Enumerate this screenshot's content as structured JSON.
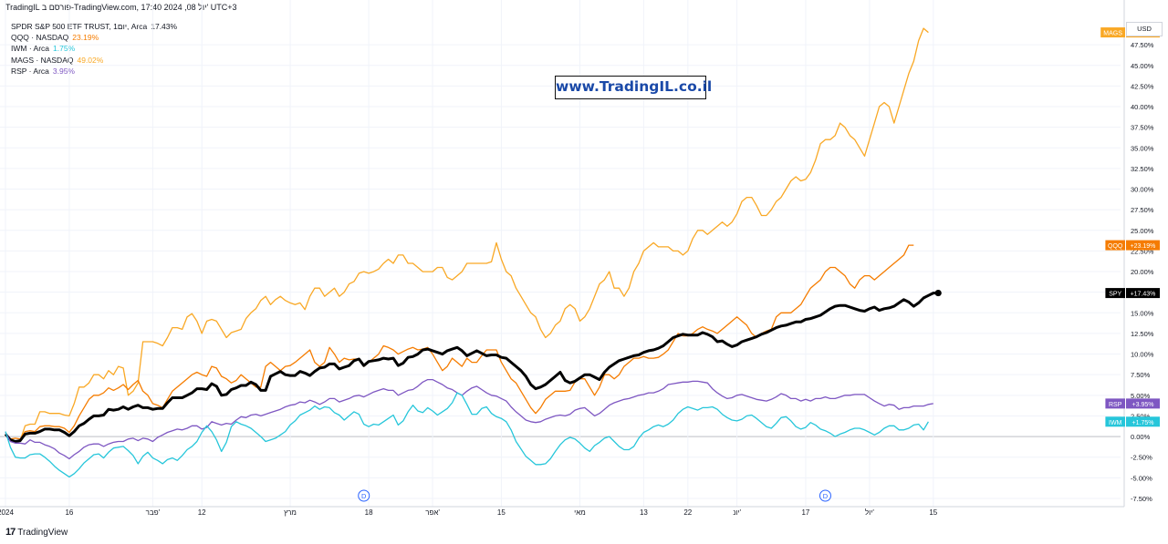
{
  "header": {
    "text": "TradingIL פורסם ב-TradingView.com, 17:40 2024 ,08 יול' UTC+3"
  },
  "watermark": "www.TradingIL.co.il",
  "currency_label": "USD",
  "footer": {
    "logo_icon": "tradingview-logo-icon",
    "brand": "TradingView"
  },
  "event_markers": [
    {
      "label": "D",
      "x_index": 73
    },
    {
      "label": "D",
      "x_index": 167
    }
  ],
  "legend": [
    {
      "label": "SPDR S&P 500 ETF TRUST, 1יום, Arca",
      "value": "17.43%",
      "color": "#131722"
    },
    {
      "label": "QQQ · NASDAQ",
      "value": "23.19%",
      "color": "#f57c00"
    },
    {
      "label": "IWM · Arca",
      "value": "1.75%",
      "color": "#26c6da"
    },
    {
      "label": "MAGS · NASDAQ",
      "value": "49.02%",
      "color": "#f9a825"
    },
    {
      "label": "RSP · Arca",
      "value": "3.95%",
      "color": "#7e57c2"
    }
  ],
  "chart_data": {
    "type": "line",
    "y_unit": "%",
    "ylim": [
      -8.5,
      50.5
    ],
    "y_ticks": [
      "-7.50%",
      "-5.00%",
      "-2.50%",
      "0.00%",
      "2.50%",
      "5.00%",
      "7.50%",
      "10.00%",
      "12.50%",
      "15.00%",
      "17.50%",
      "20.00%",
      "22.50%",
      "25.00%",
      "27.50%",
      "30.00%",
      "32.50%",
      "35.00%",
      "37.50%",
      "40.00%",
      "42.50%",
      "45.00%",
      "47.50%"
    ],
    "y_tick_values": [
      -7.5,
      -5,
      -2.5,
      0,
      2.5,
      5,
      7.5,
      10,
      12.5,
      15,
      17.5,
      20,
      22.5,
      25,
      27.5,
      30,
      32.5,
      35,
      37.5,
      40,
      42.5,
      45,
      47.5
    ],
    "x_ticks": [
      {
        "label": "2024",
        "index": 0
      },
      {
        "label": "16",
        "index": 13
      },
      {
        "label": "פבר'",
        "index": 30
      },
      {
        "label": "12",
        "index": 40
      },
      {
        "label": "מרץ",
        "index": 58
      },
      {
        "label": "18",
        "index": 74
      },
      {
        "label": "אפר'",
        "index": 87
      },
      {
        "label": "15",
        "index": 101
      },
      {
        "label": "מאי",
        "index": 117
      },
      {
        "label": "13",
        "index": 130
      },
      {
        "label": "22",
        "index": 139
      },
      {
        "label": "יונ'",
        "index": 149
      },
      {
        "label": "17",
        "index": 163
      },
      {
        "label": "יול'",
        "index": 176
      },
      {
        "label": "15",
        "index": 189
      }
    ],
    "series": [
      {
        "name": "MAGS",
        "badge": "+49.02%",
        "color": "#f9a825",
        "width": 1.3,
        "end_dot": false,
        "values": [
          0.5,
          -0.5,
          -0.5,
          -0.5,
          1.3,
          1.5,
          1.5,
          3.0,
          3.0,
          2.8,
          2.8,
          2.8,
          2.6,
          2.5,
          4.0,
          6.0,
          6.0,
          6.5,
          7.5,
          7.5,
          7.0,
          8.0,
          7.5,
          8.5,
          8.3,
          5.0,
          5.5,
          6.5,
          11.5,
          11.5,
          11.5,
          11.3,
          11.0,
          12.0,
          13.2,
          13.2,
          13.0,
          14.5,
          14.9,
          14.0,
          12.5,
          14.0,
          14.2,
          14.0,
          13.0,
          12.0,
          12.6,
          12.8,
          13.0,
          14.3,
          15.0,
          15.5,
          16.5,
          17.0,
          16.0,
          16.6,
          17.0,
          16.5,
          16.2,
          16.0,
          16.2,
          15.4,
          17.0,
          18.0,
          18.0,
          17.0,
          17.5,
          18.0,
          17.0,
          17.5,
          18.5,
          18.8,
          19.8,
          20.0,
          19.8,
          20.0,
          20.3,
          21.0,
          21.5,
          21.0,
          22.0,
          22.0,
          21.0,
          21.0,
          20.5,
          20.0,
          20.0,
          20.0,
          20.5,
          20.5,
          19.3,
          19.0,
          19.5,
          20.0,
          21.0,
          21.0,
          21.0,
          21.0,
          21.0,
          21.2,
          23.5,
          21.5,
          20.0,
          19.5,
          18.0,
          17.0,
          16.0,
          15.0,
          14.5,
          13.0,
          12.0,
          12.5,
          13.5,
          14.0,
          15.5,
          16.0,
          15.5,
          14.0,
          14.5,
          15.5,
          17.0,
          18.5,
          19.0,
          20.0,
          18.0,
          18.0,
          17.0,
          18.0,
          20.0,
          21.0,
          22.5,
          23.0,
          23.5,
          23.0,
          23.0,
          23.0,
          22.5,
          22.5,
          22.0,
          22.5,
          24.0,
          25.0,
          25.0,
          24.5,
          25.0,
          25.5,
          26.0,
          25.5,
          26.0,
          27.0,
          28.5,
          29.0,
          29.0,
          28.0,
          26.8,
          26.8,
          27.5,
          28.5,
          29.0,
          30.0,
          31.0,
          31.5,
          31.0,
          31.2,
          32.0,
          33.5,
          35.5,
          36.0,
          36.0,
          36.5,
          38.0,
          37.5,
          36.5,
          36.0,
          35.0,
          34.0,
          36.0,
          38.0,
          40.0,
          40.5,
          40.0,
          38.0,
          40.0,
          42.0,
          44.0,
          45.5,
          48.0,
          49.5,
          49.0
        ]
      },
      {
        "name": "QQQ",
        "badge": "+23.19%",
        "color": "#f57c00",
        "width": 1.3,
        "end_dot": false,
        "values": [
          0.2,
          -0.3,
          -0.2,
          -0.3,
          0.6,
          0.7,
          0.6,
          1.2,
          1.3,
          1.3,
          1.2,
          1.2,
          1.0,
          0.5,
          1.3,
          2.5,
          3.5,
          4.5,
          5.0,
          5.0,
          5.3,
          5.9,
          5.6,
          5.9,
          6.3,
          5.7,
          6.3,
          6.8,
          5.5,
          5.0,
          4.0,
          3.8,
          3.5,
          4.5,
          5.5,
          6.0,
          6.5,
          7.0,
          7.5,
          7.8,
          7.5,
          7.3,
          8.5,
          8.3,
          7.3,
          7.0,
          6.5,
          6.8,
          7.5,
          7.0,
          6.5,
          6.0,
          6.0,
          8.5,
          9.0,
          8.5,
          8.0,
          8.5,
          8.6,
          9.0,
          9.5,
          10.0,
          10.5,
          9.0,
          8.5,
          9.0,
          10.8,
          10.0,
          9.0,
          9.5,
          9.3,
          9.4,
          9.4,
          8.5,
          9.0,
          9.5,
          10.0,
          11.0,
          10.8,
          10.5,
          10.0,
          10.3,
          10.6,
          10.8,
          10.5,
          10.6,
          10.8,
          10.0,
          9.0,
          8.0,
          8.5,
          9.5,
          9.0,
          8.5,
          9.5,
          9.0,
          9.0,
          9.8,
          10.5,
          10.5,
          10.5,
          9.0,
          8.0,
          7.0,
          6.5,
          5.5,
          4.5,
          3.5,
          2.8,
          3.5,
          4.5,
          5.0,
          5.5,
          5.5,
          5.5,
          5.6,
          6.6,
          7.0,
          7.0,
          6.0,
          5.0,
          6.0,
          7.5,
          7.5,
          7.0,
          7.5,
          8.5,
          9.0,
          9.5,
          9.5,
          9.7,
          9.5,
          9.5,
          9.6,
          10.0,
          10.5,
          11.5,
          12.5,
          12.2,
          12.2,
          12.5,
          13.0,
          13.3,
          13.0,
          12.8,
          12.5,
          13.0,
          13.5,
          14.0,
          14.5,
          14.0,
          13.5,
          12.5,
          12.0,
          12.5,
          12.8,
          13.0,
          14.5,
          15.0,
          15.0,
          15.0,
          15.5,
          16.0,
          17.0,
          18.0,
          18.5,
          19.0,
          20.0,
          20.5,
          20.5,
          20.0,
          19.5,
          18.5,
          18.0,
          19.0,
          19.5,
          19.5,
          19.0,
          19.5,
          20.0,
          20.5,
          21.0,
          21.5,
          22.0,
          23.2,
          23.2
        ]
      },
      {
        "name": "SPY",
        "badge": "+17.43%",
        "color": "#000000",
        "width": 3.0,
        "end_dot": true,
        "values": [
          0.3,
          -0.4,
          -0.6,
          -0.5,
          0.3,
          0.4,
          0.4,
          0.6,
          0.9,
          0.9,
          0.8,
          0.8,
          0.5,
          0.1,
          0.6,
          1.3,
          1.6,
          2.1,
          2.5,
          2.5,
          2.6,
          3.3,
          3.2,
          3.3,
          3.6,
          3.3,
          3.6,
          3.8,
          3.5,
          3.5,
          3.3,
          3.4,
          3.4,
          4.1,
          4.7,
          4.7,
          4.7,
          5.0,
          5.3,
          5.8,
          5.8,
          5.7,
          6.4,
          6.1,
          5.0,
          5.1,
          5.7,
          5.9,
          6.2,
          6.2,
          6.6,
          6.3,
          5.6,
          5.6,
          7.3,
          7.6,
          7.9,
          7.5,
          7.4,
          7.4,
          7.9,
          7.7,
          7.4,
          7.9,
          8.3,
          8.4,
          8.8,
          8.8,
          8.2,
          8.4,
          8.6,
          9.2,
          9.4,
          8.6,
          9.1,
          9.2,
          9.3,
          9.5,
          9.4,
          9.5,
          8.6,
          8.9,
          9.6,
          9.7,
          10.0,
          10.5,
          10.6,
          10.4,
          10.2,
          10.0,
          10.4,
          10.6,
          10.8,
          10.4,
          9.8,
          10.1,
          10.4,
          10.1,
          9.8,
          9.9,
          9.9,
          9.6,
          9.5,
          9.0,
          8.5,
          8.0,
          7.3,
          6.3,
          5.8,
          6.0,
          6.3,
          6.8,
          7.3,
          7.8,
          6.8,
          6.5,
          6.7,
          7.1,
          7.5,
          7.5,
          7.2,
          6.9,
          7.8,
          8.4,
          8.8,
          9.2,
          9.4,
          9.6,
          9.8,
          9.9,
          10.2,
          10.4,
          10.5,
          10.7,
          11.0,
          11.5,
          12.0,
          12.2,
          12.4,
          12.3,
          12.3,
          12.3,
          12.6,
          12.4,
          12.1,
          11.5,
          11.6,
          11.2,
          10.9,
          11.1,
          11.5,
          11.7,
          11.9,
          12.1,
          12.4,
          12.6,
          12.9,
          13.2,
          13.4,
          13.5,
          13.7,
          13.9,
          13.9,
          14.2,
          14.3,
          14.5,
          14.7,
          15.1,
          15.5,
          15.8,
          15.9,
          15.9,
          15.7,
          15.5,
          15.3,
          15.2,
          15.5,
          15.7,
          15.3,
          15.5,
          15.6,
          15.8,
          16.2,
          16.6,
          16.3,
          15.8,
          16.2,
          16.8,
          17.1,
          17.4,
          17.4
        ]
      },
      {
        "name": "RSP",
        "badge": "+3.95%",
        "color": "#7e57c2",
        "width": 1.3,
        "end_dot": false,
        "values": [
          0.5,
          -0.6,
          -0.8,
          -0.8,
          -0.9,
          -0.4,
          -0.7,
          -0.7,
          -1.0,
          -1.2,
          -1.5,
          -2.0,
          -2.3,
          -2.7,
          -2.2,
          -1.8,
          -1.3,
          -1.0,
          -0.9,
          -0.9,
          -1.2,
          -0.9,
          -0.7,
          -0.6,
          -0.6,
          -0.3,
          -0.2,
          -0.5,
          -0.2,
          -0.3,
          -0.6,
          -0.1,
          0.2,
          0.5,
          0.7,
          0.9,
          0.8,
          1.0,
          1.3,
          1.3,
          0.9,
          1.1,
          1.8,
          1.6,
          1.4,
          1.6,
          1.5,
          2.0,
          2.4,
          2.3,
          2.6,
          2.7,
          2.5,
          2.7,
          2.9,
          3.1,
          3.3,
          3.6,
          3.8,
          3.9,
          4.2,
          4.1,
          4.4,
          4.2,
          3.9,
          4.2,
          4.6,
          4.6,
          4.2,
          4.4,
          4.6,
          4.9,
          5.0,
          4.8,
          5.1,
          5.4,
          5.6,
          5.8,
          5.6,
          5.6,
          5.0,
          5.3,
          5.6,
          5.7,
          6.1,
          6.6,
          6.9,
          6.9,
          6.6,
          6.3,
          5.9,
          5.7,
          5.3,
          5.0,
          5.5,
          5.9,
          6.1,
          5.7,
          5.3,
          5.0,
          4.9,
          4.6,
          4.3,
          3.6,
          3.0,
          2.5,
          2.0,
          1.8,
          1.7,
          1.8,
          2.1,
          2.3,
          2.5,
          2.6,
          2.5,
          2.7,
          3.2,
          3.4,
          3.5,
          3.0,
          2.5,
          2.8,
          3.3,
          3.8,
          4.1,
          4.3,
          4.5,
          4.6,
          4.8,
          5.0,
          5.1,
          5.3,
          5.3,
          5.5,
          5.8,
          6.3,
          6.4,
          6.5,
          6.6,
          6.6,
          6.7,
          6.7,
          6.6,
          6.5,
          5.8,
          5.3,
          4.9,
          4.6,
          4.7,
          5.0,
          5.1,
          4.9,
          4.7,
          4.5,
          4.4,
          4.3,
          4.5,
          4.8,
          5.2,
          5.0,
          4.6,
          4.6,
          4.3,
          4.5,
          4.3,
          4.6,
          4.6,
          4.8,
          4.6,
          4.6,
          4.8,
          5.0,
          5.0,
          5.1,
          5.1,
          5.1,
          4.7,
          4.3,
          4.0,
          3.7,
          3.9,
          3.8,
          3.3,
          3.5,
          3.5,
          3.7,
          3.7,
          3.7,
          3.9,
          4.0
        ]
      },
      {
        "name": "IWM",
        "badge": "+1.75%",
        "color": "#26c6da",
        "width": 1.3,
        "end_dot": false,
        "values": [
          0.6,
          -1.3,
          -2.5,
          -2.6,
          -2.6,
          -2.2,
          -2.1,
          -2.1,
          -2.5,
          -3.0,
          -3.6,
          -4.1,
          -4.5,
          -4.9,
          -4.5,
          -3.9,
          -3.2,
          -2.7,
          -2.2,
          -2.1,
          -2.6,
          -1.9,
          -1.4,
          -1.3,
          -1.2,
          -1.7,
          -2.3,
          -3.3,
          -2.4,
          -1.9,
          -2.6,
          -2.9,
          -3.3,
          -2.8,
          -2.6,
          -2.9,
          -2.3,
          -1.6,
          -1.2,
          -0.6,
          0.5,
          1.3,
          0.6,
          -0.4,
          -1.8,
          -0.7,
          1.2,
          1.8,
          1.5,
          1.3,
          1.0,
          0.5,
          0.0,
          -0.6,
          -0.4,
          -0.2,
          0.2,
          0.6,
          1.4,
          1.9,
          2.6,
          2.9,
          3.2,
          3.7,
          3.3,
          3.6,
          3.5,
          2.9,
          2.6,
          2.0,
          2.5,
          3.0,
          2.7,
          1.5,
          1.2,
          1.5,
          1.4,
          1.8,
          2.2,
          2.6,
          1.4,
          1.9,
          3.0,
          3.8,
          3.1,
          2.9,
          3.5,
          3.1,
          2.6,
          3.0,
          3.4,
          4.1,
          5.3,
          5.0,
          3.9,
          2.7,
          2.7,
          3.4,
          3.6,
          2.8,
          2.4,
          2.2,
          1.8,
          0.8,
          -0.6,
          -1.5,
          -2.4,
          -2.9,
          -3.4,
          -3.4,
          -3.3,
          -2.7,
          -1.8,
          -1.0,
          -0.4,
          -0.1,
          -0.3,
          -0.8,
          -1.4,
          -1.8,
          -1.1,
          -0.7,
          -0.2,
          0.0,
          -0.6,
          -1.2,
          -1.6,
          -1.6,
          -1.2,
          -0.2,
          0.5,
          0.8,
          1.2,
          1.4,
          1.2,
          1.5,
          2.0,
          2.8,
          3.3,
          3.6,
          3.4,
          3.2,
          3.5,
          3.5,
          3.6,
          3.3,
          2.7,
          2.3,
          2.0,
          1.9,
          2.1,
          2.5,
          2.6,
          2.2,
          1.7,
          1.2,
          1.0,
          1.6,
          2.3,
          2.4,
          1.9,
          1.2,
          0.9,
          1.1,
          1.7,
          1.4,
          0.9,
          0.7,
          0.4,
          0.0,
          0.3,
          0.5,
          0.8,
          1.0,
          1.0,
          0.8,
          0.5,
          0.2,
          0.5,
          1.0,
          1.3,
          1.3,
          0.8,
          0.8,
          1.0,
          1.4,
          1.5,
          0.8,
          1.8
        ]
      }
    ]
  }
}
